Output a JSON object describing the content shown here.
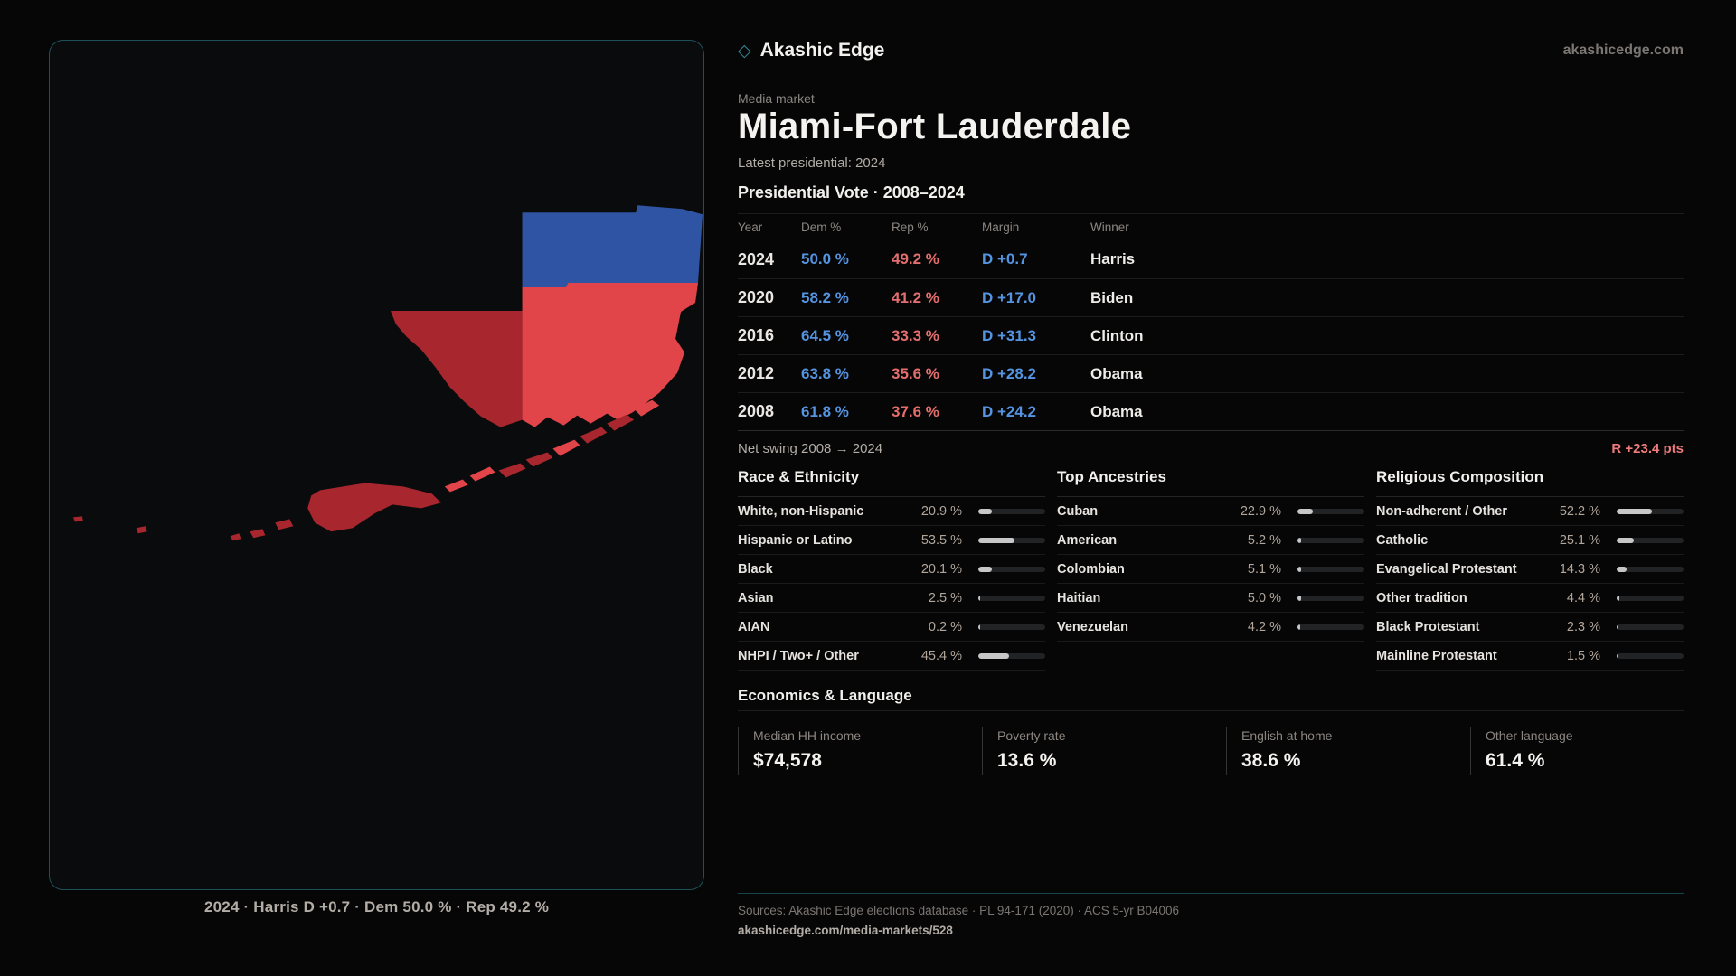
{
  "brand": {
    "logo_mark": "◇",
    "name": "Akashic Edge",
    "site": "akashicedge.com"
  },
  "header": {
    "kicker": "Media market",
    "title": "Miami-Fort Lauderdale",
    "subtitle": "Latest presidential: 2024"
  },
  "vote_table": {
    "title": "Presidential Vote · 2008–2024",
    "columns": [
      "Year",
      "Dem %",
      "Rep %",
      "Margin",
      "Winner"
    ],
    "rows": [
      {
        "year": "2024",
        "dem": "50.0 %",
        "rep": "49.2 %",
        "margin": "D +0.7",
        "winner": "Harris"
      },
      {
        "year": "2020",
        "dem": "58.2 %",
        "rep": "41.2 %",
        "margin": "D +17.0",
        "winner": "Biden"
      },
      {
        "year": "2016",
        "dem": "64.5 %",
        "rep": "33.3 %",
        "margin": "D +31.3",
        "winner": "Clinton"
      },
      {
        "year": "2012",
        "dem": "63.8 %",
        "rep": "35.6 %",
        "margin": "D +28.2",
        "winner": "Obama"
      },
      {
        "year": "2008",
        "dem": "61.8 %",
        "rep": "37.6 %",
        "margin": "D +24.2",
        "winner": "Obama"
      }
    ],
    "net_swing_label": "Net swing 2008 → 2024",
    "net_swing_value": "R +23.4 pts"
  },
  "demographics": [
    {
      "title": "Race & Ethnicity",
      "rows": [
        {
          "label": "White, non-Hispanic",
          "value": "20.9 %",
          "pct": 20.9
        },
        {
          "label": "Hispanic or Latino",
          "value": "53.5 %",
          "pct": 53.5
        },
        {
          "label": "Black",
          "value": "20.1 %",
          "pct": 20.1
        },
        {
          "label": "Asian",
          "value": "2.5 %",
          "pct": 2.5
        },
        {
          "label": "AIAN",
          "value": "0.2 %",
          "pct": 0.2
        },
        {
          "label": "NHPI / Two+ / Other",
          "value": "45.4 %",
          "pct": 45.4
        }
      ]
    },
    {
      "title": "Top Ancestries",
      "rows": [
        {
          "label": "Cuban",
          "value": "22.9 %",
          "pct": 22.9
        },
        {
          "label": "American",
          "value": "5.2 %",
          "pct": 5.2
        },
        {
          "label": "Colombian",
          "value": "5.1 %",
          "pct": 5.1
        },
        {
          "label": "Haitian",
          "value": "5.0 %",
          "pct": 5.0
        },
        {
          "label": "Venezuelan",
          "value": "4.2 %",
          "pct": 4.2
        }
      ]
    },
    {
      "title": "Religious Composition",
      "rows": [
        {
          "label": "Non-adherent / Other",
          "value": "52.2 %",
          "pct": 52.2
        },
        {
          "label": "Catholic",
          "value": "25.1 %",
          "pct": 25.1
        },
        {
          "label": "Evangelical Protestant",
          "value": "14.3 %",
          "pct": 14.3
        },
        {
          "label": "Other tradition",
          "value": "4.4 %",
          "pct": 4.4
        },
        {
          "label": "Black Protestant",
          "value": "2.3 %",
          "pct": 2.3
        },
        {
          "label": "Mainline Protestant",
          "value": "1.5 %",
          "pct": 1.5
        }
      ]
    }
  ],
  "economics": {
    "title": "Economics & Language",
    "stats": [
      {
        "label": "Median HH income",
        "value": "$74,578"
      },
      {
        "label": "Poverty rate",
        "value": "13.6 %"
      },
      {
        "label": "English at home",
        "value": "38.6 %"
      },
      {
        "label": "Other language",
        "value": "61.4 %"
      }
    ]
  },
  "map": {
    "caption": "2024 · Harris D +0.7 · Dem 50.0 % · Rep 49.2 %"
  },
  "footer": {
    "sources": "Sources: Akashic Edge elections database · PL 94-171 (2020) · ACS 5-yr B04006",
    "link": "akashicedge.com/media-markets/528"
  },
  "colors": {
    "dem_blue": "#5494e0",
    "rep_red": "#e46d6d",
    "swing_red": "#ef7b7b",
    "accent_teal": "#14454c",
    "map_dem_blue": "#2e54a3",
    "map_rep_red": "#e14549",
    "map_rep_dark_red": "#a8262e",
    "bar_fill": "#c7c7c7"
  }
}
